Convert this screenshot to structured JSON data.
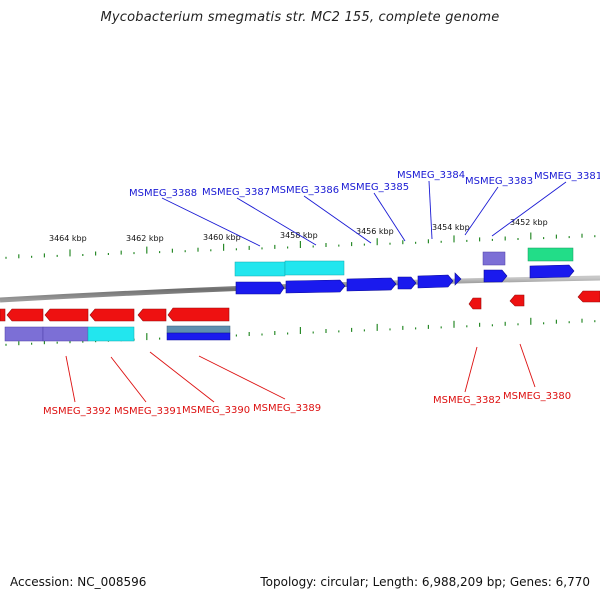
{
  "title": "Mycobacterium smegmatis str. MC2 155, complete genome",
  "footer": {
    "accession": "Accession: NC_008596",
    "topology": "Topology: circular; Length: 6,988,209 bp; Genes: 6,770"
  },
  "colors": {
    "forward_gene": "#1a1aee",
    "reverse_gene": "#ee1111",
    "forward_label": "#1a1ad4",
    "reverse_label": "#dd1111",
    "tick": "#2a8a2a",
    "backbone": "#8a8a8a",
    "cyan_feature": "#22e6ee",
    "purple_feature": "#7c6fd6",
    "green_feature": "#22dd88",
    "teal_feature": "#5f8fb0"
  },
  "scale_labels": [
    "3464 kbp",
    "3462 kbp",
    "3460 kbp",
    "3458 kbp",
    "3456 kbp",
    "3454 kbp",
    "3452 kbp"
  ],
  "forward_gene_labels": [
    "MSMEG_3388",
    "MSMEG_3387",
    "MSMEG_3386",
    "MSMEG_3385",
    "MSMEG_3384",
    "MSMEG_3383",
    "MSMEG_3381"
  ],
  "reverse_gene_labels": [
    "MSMEG_3392",
    "MSMEG_3391",
    "MSMEG_3390",
    "MSMEG_3389",
    "MSMEG_3382",
    "MSMEG_3380"
  ]
}
